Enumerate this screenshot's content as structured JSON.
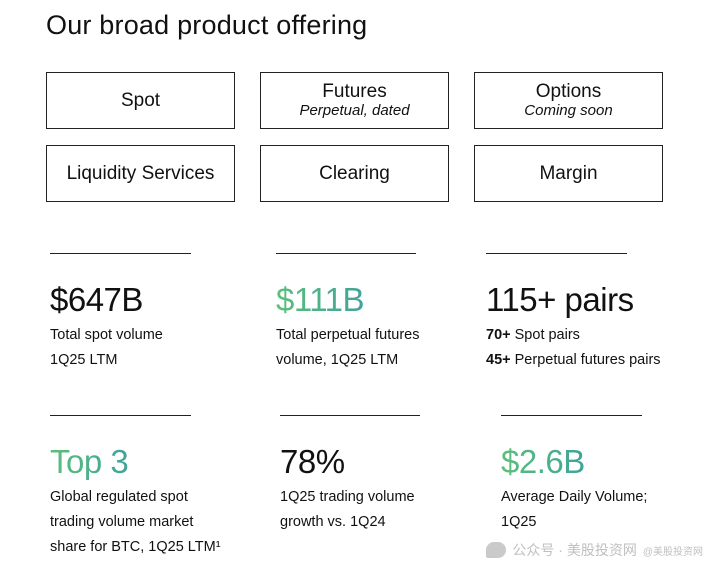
{
  "title": "Our broad product offering",
  "products": [
    {
      "label": "Spot",
      "sub": ""
    },
    {
      "label": "Futures",
      "sub": "Perpetual, dated"
    },
    {
      "label": "Options",
      "sub": "Coming soon"
    },
    {
      "label": "Liquidity Services",
      "sub": ""
    },
    {
      "label": "Clearing",
      "sub": ""
    },
    {
      "label": "Margin",
      "sub": ""
    }
  ],
  "stats": {
    "spot": {
      "value": "$647B",
      "line1": "Total spot volume",
      "line2": "1Q25 LTM"
    },
    "perp": {
      "value": "$111B",
      "line1": "Total perpetual futures",
      "line2": "volume, 1Q25 LTM"
    },
    "pairs": {
      "value": "115+ pairs",
      "l1_bold": "70+",
      "l1_rest": " Spot pairs",
      "l2_bold": "45+",
      "l2_rest": " Perpetual futures pairs"
    },
    "rank": {
      "value": "Top 3",
      "line1": "Global regulated spot",
      "line2": "trading volume market",
      "line3": "share for BTC, 1Q25 LTM¹"
    },
    "growth": {
      "value": "78%",
      "line1": "1Q25 trading volume",
      "line2": "growth vs. 1Q24"
    },
    "adv": {
      "value": "$2.6B",
      "line1": "Average Daily Volume;",
      "line2": "1Q25"
    }
  },
  "watermark": {
    "text": "公众号 · 美股投资网",
    "corner": "@美股投资网"
  },
  "colors": {
    "accent_start": "#5cbf7a",
    "accent_end": "#3fa39a",
    "text": "#111111",
    "border": "#222222"
  }
}
